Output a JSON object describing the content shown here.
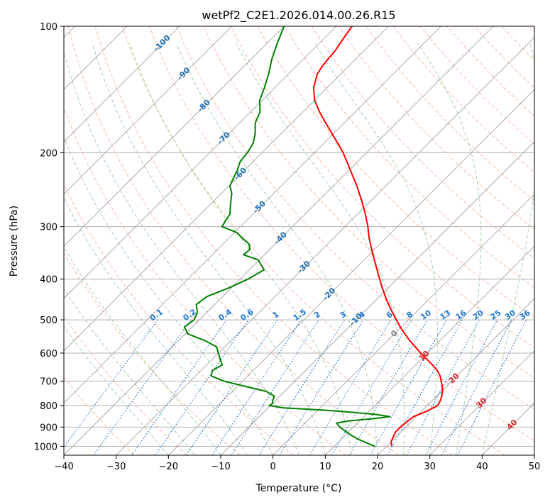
{
  "chart_data": {
    "type": "line",
    "title": "wetPf2_C2E1.2026.014.00.26.R15",
    "xlabel": "Temperature (°C)",
    "ylabel": "Pressure (hPa)",
    "xlim": [
      -40,
      50
    ],
    "ylim": [
      1050,
      100
    ],
    "y_scale": "log",
    "grid": true,
    "x_ticks": [
      -40,
      -30,
      -20,
      -10,
      0,
      10,
      20,
      30,
      40,
      50
    ],
    "y_ticks": [
      1000,
      900,
      800,
      700,
      600,
      500,
      400,
      300,
      200,
      100
    ],
    "skew": "45°",
    "series": [
      {
        "color": "#ff0000",
        "p": [
          1000,
          990,
          975,
          950,
          925,
          900,
          875,
          850,
          825,
          800,
          780,
          760,
          740,
          720,
          700,
          680,
          660,
          640,
          620,
          600,
          580,
          560,
          540,
          520,
          500,
          470,
          450,
          420,
          400,
          380,
          360,
          340,
          320,
          300,
          280,
          260,
          240,
          220,
          200,
          185,
          170,
          160,
          150,
          140,
          130,
          125,
          120,
          115,
          110,
          105,
          100
        ],
        "t": [
          21.0,
          20.6,
          20.0,
          19.5,
          19.0,
          19.0,
          19.2,
          19.5,
          21.0,
          22.0,
          21.6,
          21.0,
          20.2,
          19.2,
          18.0,
          16.8,
          15.2,
          13.2,
          11.0,
          8.7,
          6.5,
          4.2,
          2.0,
          -0.2,
          -2.3,
          -5.6,
          -7.8,
          -11.1,
          -13.3,
          -15.6,
          -18.0,
          -20.5,
          -23.1,
          -25.6,
          -28.5,
          -31.8,
          -35.5,
          -39.8,
          -44.5,
          -48.8,
          -53.5,
          -56.8,
          -60.0,
          -62.6,
          -64.5,
          -65.0,
          -65.3,
          -65.5,
          -66.0,
          -66.5,
          -67.0
        ]
      },
      {
        "color": "#008000",
        "p": [
          1000,
          990,
          975,
          960,
          940,
          920,
          900,
          880,
          870,
          860,
          850,
          840,
          830,
          820,
          810,
          800,
          790,
          780,
          760,
          740,
          720,
          700,
          680,
          660,
          640,
          620,
          600,
          580,
          560,
          540,
          520,
          500,
          480,
          460,
          440,
          420,
          400,
          380,
          360,
          350,
          340,
          330,
          320,
          310,
          300,
          290,
          280,
          270,
          260,
          250,
          240,
          230,
          220,
          210,
          200,
          190,
          180,
          170,
          160,
          150,
          140,
          130,
          120,
          110,
          100
        ],
        "t": [
          17.8,
          16.6,
          14.8,
          13.0,
          11.0,
          9.2,
          7.4,
          6.0,
          8.0,
          12.0,
          15.0,
          12.0,
          7.0,
          1.0,
          -7.0,
          -10.2,
          -10.0,
          -10.5,
          -11.0,
          -13.5,
          -18.5,
          -23.5,
          -27.0,
          -27.8,
          -27.0,
          -28.5,
          -30.0,
          -31.5,
          -35.0,
          -39.5,
          -41.5,
          -41.0,
          -41.8,
          -43.5,
          -43.0,
          -40.5,
          -38.5,
          -37.2,
          -40.2,
          -44.0,
          -43.8,
          -45.0,
          -47.3,
          -49.5,
          -53.5,
          -54.0,
          -54.4,
          -55.6,
          -56.8,
          -58.0,
          -59.8,
          -60.6,
          -61.4,
          -62.5,
          -62.8,
          -63.5,
          -65.0,
          -67.0,
          -68.2,
          -70.5,
          -72.0,
          -73.8,
          -76.0,
          -78.0,
          -80.0
        ]
      }
    ],
    "isotherm_labels": [
      "-100",
      "-90",
      "-80",
      "-70",
      "-60",
      "-50",
      "-40",
      "-30",
      "-20",
      "-10",
      "0",
      "10",
      "20",
      "30",
      "40"
    ],
    "mixing_ratio_labels": [
      "0.1",
      "0.2",
      "0.4",
      "0.6",
      "1",
      "1.5",
      "2",
      "3",
      "4",
      "6",
      "8",
      "10",
      "13",
      "16",
      "20",
      "25",
      "30",
      "36"
    ],
    "colors": {
      "temperature": "#ff0000",
      "dewpoint": "#008000",
      "isotherm": "#808080",
      "dry_adiabat": "#f4a582",
      "moist_adiabat": "#8fc98f",
      "mixing_ratio": "#1f77d4",
      "grid": "#b0b0b0"
    }
  }
}
